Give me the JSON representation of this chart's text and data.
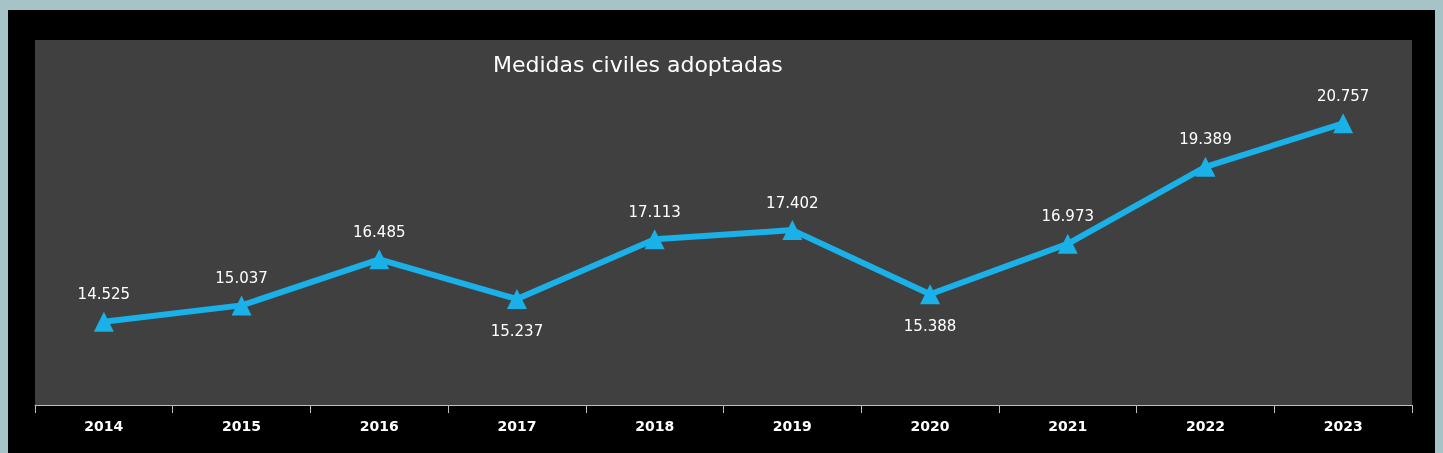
{
  "chart_data": {
    "type": "line",
    "title": "Medidas civiles adoptadas",
    "categories": [
      "2014",
      "2015",
      "2016",
      "2017",
      "2018",
      "2019",
      "2020",
      "2021",
      "2022",
      "2023"
    ],
    "series": [
      {
        "color": "#1ab0e8",
        "values": [
          14525,
          15037,
          16485,
          15237,
          17113,
          17402,
          15388,
          16973,
          19389,
          20757
        ],
        "value_labels": [
          "14.525",
          "15.037",
          "16.485",
          "15.237",
          "17.113",
          "17.402",
          "15.388",
          "16.973",
          "19.389",
          "20.757"
        ]
      }
    ],
    "marker": "triangle",
    "line_style": "solid",
    "tick_labels": "x"
  }
}
